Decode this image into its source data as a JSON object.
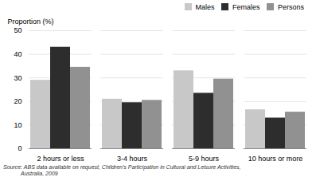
{
  "chart_data": {
    "type": "bar",
    "categories": [
      "2 hours or less",
      "3-4 hours",
      "5-9 hours",
      "10 hours or more"
    ],
    "series": [
      {
        "name": "Males",
        "color": "#c8c8c8",
        "values": [
          29,
          21,
          33,
          16.5
        ]
      },
      {
        "name": "Females",
        "color": "#2d2d2d",
        "values": [
          43,
          19.5,
          23.5,
          13
        ]
      },
      {
        "name": "Persons",
        "color": "#919191",
        "values": [
          34.5,
          20.5,
          29.5,
          15.5
        ]
      }
    ],
    "ylabel": "Proportion (%)",
    "ylim": [
      0,
      50
    ],
    "yticks": [
      0,
      10,
      20,
      30,
      40,
      50
    ],
    "grid": true,
    "legend": "upper right",
    "annotations": [
      "Source: ABS data available on request, Children's Participation in Cultural and Leisure Activities,",
      "Australia, 2009"
    ]
  }
}
